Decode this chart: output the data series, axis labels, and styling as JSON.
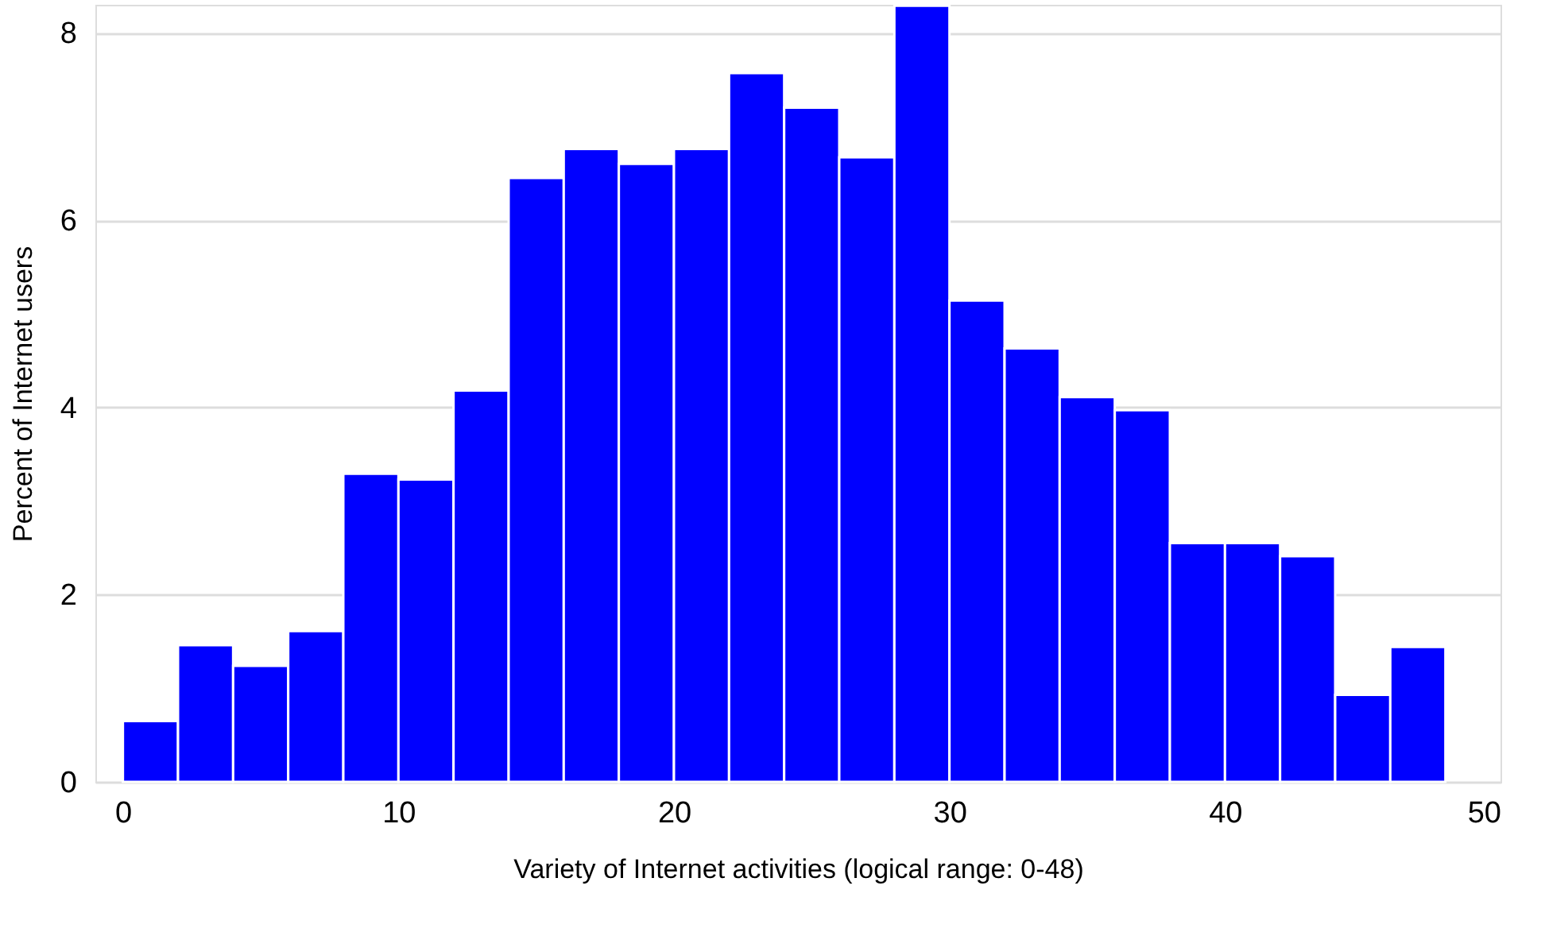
{
  "chart_data": {
    "type": "histogram",
    "xlabel": "Variety of Internet activities (logical range: 0-48)",
    "ylabel": "Percent of Internet users",
    "bins": [
      0,
      2,
      4,
      6,
      8,
      10,
      12,
      14,
      16,
      18,
      20,
      22,
      24,
      26,
      28,
      30,
      32,
      34,
      36,
      38,
      40,
      42,
      44,
      46,
      48
    ],
    "values": [
      0.65,
      1.46,
      1.24,
      1.61,
      3.29,
      3.23,
      4.18,
      6.45,
      6.76,
      6.6,
      6.76,
      7.57,
      7.2,
      6.67,
      8.29,
      5.14,
      4.63,
      4.11,
      3.97,
      2.55,
      2.55,
      2.41,
      0.93,
      1.44
    ],
    "color": "#0000ff",
    "xlim": [
      -1,
      50
    ],
    "xticks": [
      0,
      10,
      20,
      30,
      40,
      50
    ],
    "ylim": [
      0,
      8.3
    ],
    "yticks": [
      0,
      2,
      4,
      6,
      8
    ],
    "grid": "y"
  }
}
